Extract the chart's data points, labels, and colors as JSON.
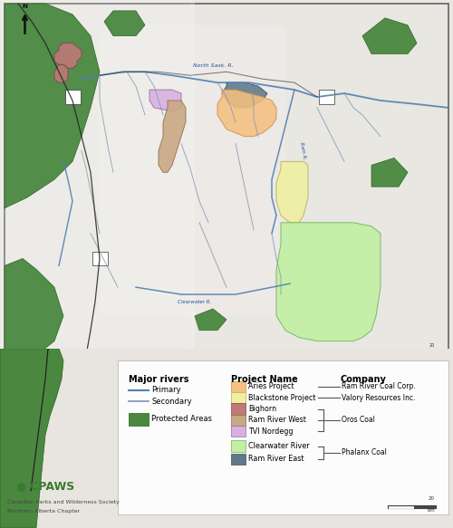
{
  "map_bg": "#e8e5e0",
  "terrain_bg": "#e0dbd5",
  "border_color": "#555555",
  "projects": [
    {
      "name": "Aries Project",
      "color": "#f5c080",
      "edge": "#c89050"
    },
    {
      "name": "Blackstone Project",
      "color": "#f0f0a0",
      "edge": "#b0b060"
    },
    {
      "name": "Bighorn",
      "color": "#c07878",
      "edge": "#804848"
    },
    {
      "name": "Ram River West",
      "color": "#c8a882",
      "edge": "#907050"
    },
    {
      "name": "TVI Nordegg",
      "color": "#d8b0e0",
      "edge": "#9070a0"
    },
    {
      "name": "Clearwater River",
      "color": "#c0f0a0",
      "edge": "#70b060"
    },
    {
      "name": "Ram River East",
      "color": "#607888",
      "edge": "#405060"
    }
  ],
  "river_primary_color": "#5080b0",
  "river_secondary_color": "#8090b0",
  "protected_color": "#4a8840",
  "protected_edge": "#2a6020",
  "north_arrow_color": "#111111",
  "cpaws_color": "#3a7a30",
  "scale_color": "#333333"
}
